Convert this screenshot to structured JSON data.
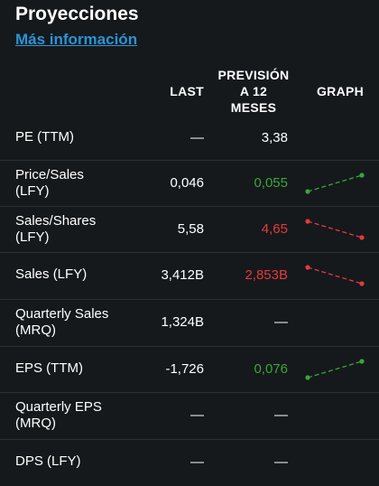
{
  "title": "Proyecciones",
  "more_link": "Más información",
  "header": {
    "last": "LAST",
    "forecast_lines": [
      "PREVISIÓN",
      "A 12",
      "MESES"
    ],
    "graph": "GRAPH"
  },
  "colors": {
    "up": "#3aa53a",
    "down": "#e5393c",
    "neutral": "#ffffff",
    "link": "#2a93d5"
  },
  "rows": [
    {
      "label_lines": [
        "PE (TTM)"
      ],
      "last": "—",
      "forecast": "3,38",
      "trend": "none"
    },
    {
      "label_lines": [
        "Price/Sales",
        "(LFY)"
      ],
      "last": "0,046",
      "forecast": "0,055",
      "trend": "up"
    },
    {
      "label_lines": [
        "Sales/Shares",
        "(LFY)"
      ],
      "last": "5,58",
      "forecast": "4,65",
      "trend": "down"
    },
    {
      "label_lines": [
        "Sales (LFY)"
      ],
      "last": "3,412B",
      "forecast": "2,853B",
      "trend": "down"
    },
    {
      "label_lines": [
        "Quarterly Sales",
        "(MRQ)"
      ],
      "last": "1,324B",
      "forecast": "—",
      "trend": "none"
    },
    {
      "label_lines": [
        "EPS (TTM)"
      ],
      "last": "-1,726",
      "forecast": "0,076",
      "trend": "up"
    },
    {
      "label_lines": [
        "Quarterly EPS",
        "(MRQ)"
      ],
      "last": "—",
      "forecast": "—",
      "trend": "none"
    },
    {
      "label_lines": [
        "DPS (LFY)"
      ],
      "last": "—",
      "forecast": "—",
      "trend": "none"
    }
  ]
}
